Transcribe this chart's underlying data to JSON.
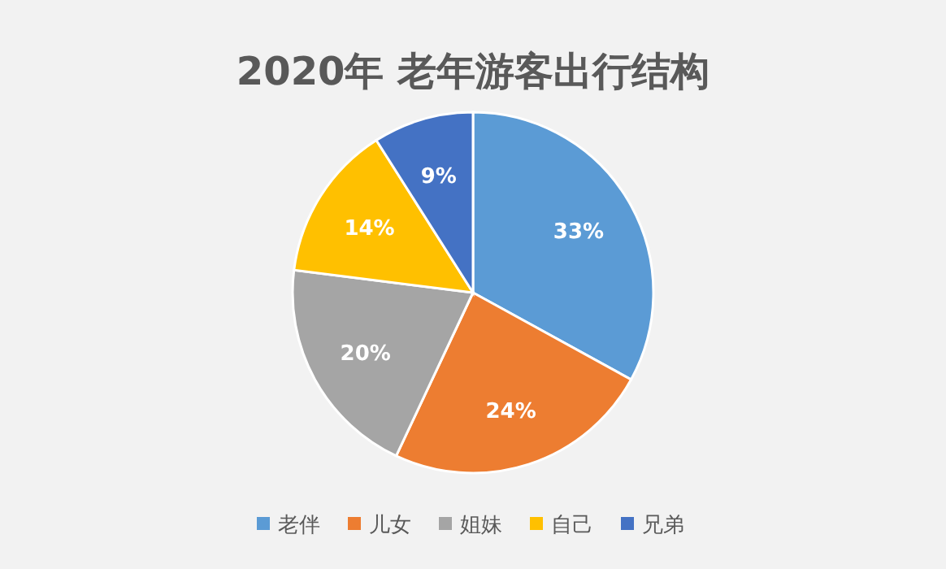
{
  "chart_data": {
    "type": "pie",
    "title": "2020年 老年游客出行结构",
    "categories": [
      "老伴",
      "儿女",
      "姐妹",
      "自己",
      "兄弟"
    ],
    "values": [
      33,
      24,
      20,
      14,
      9
    ],
    "value_labels": [
      "33%",
      "24%",
      "20%",
      "14%",
      "9%"
    ],
    "colors": [
      "#5b9bd5",
      "#ed7d31",
      "#a5a5a5",
      "#ffc000",
      "#4472c4"
    ],
    "legend": "bottom"
  }
}
